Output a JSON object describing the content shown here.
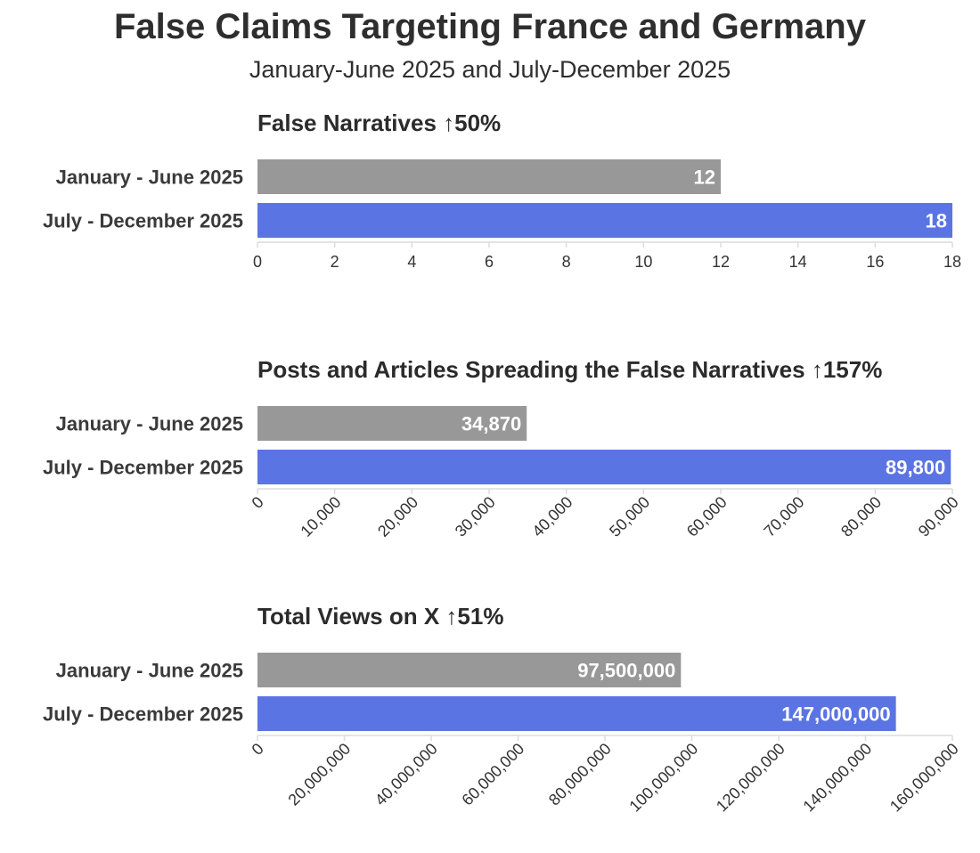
{
  "title": "False Claims Targeting France and Germany",
  "subtitle": "January-June 2025 and July-December 2025",
  "colors": {
    "period1": "#989898",
    "period2": "#5b74e3",
    "axis": "#dcdcdc"
  },
  "chart_data": [
    {
      "type": "bar",
      "orientation": "horizontal",
      "title": "False Narratives ↑50%",
      "categories": [
        "January - June 2025",
        "July - December 2025"
      ],
      "values": [
        12,
        18
      ],
      "value_labels": [
        "12",
        "18"
      ],
      "xlim": [
        0,
        18
      ],
      "ticks": [
        0,
        2,
        4,
        6,
        8,
        10,
        12,
        14,
        16,
        18
      ],
      "tick_labels": [
        "0",
        "2",
        "4",
        "6",
        "8",
        "10",
        "12",
        "14",
        "16",
        "18"
      ],
      "tick_rotation": 0
    },
    {
      "type": "bar",
      "orientation": "horizontal",
      "title": "Posts and Articles Spreading the False Narratives ↑157%",
      "categories": [
        "January - June 2025",
        "July - December 2025"
      ],
      "values": [
        34870,
        89800
      ],
      "value_labels": [
        "34,870",
        "89,800"
      ],
      "xlim": [
        0,
        90000
      ],
      "ticks": [
        0,
        10000,
        20000,
        30000,
        40000,
        50000,
        60000,
        70000,
        80000,
        90000
      ],
      "tick_labels": [
        "0",
        "10,000",
        "20,000",
        "30,000",
        "40,000",
        "50,000",
        "60,000",
        "70,000",
        "80,000",
        "90,000"
      ],
      "tick_rotation": -45
    },
    {
      "type": "bar",
      "orientation": "horizontal",
      "title": "Total Views on X ↑51%",
      "categories": [
        "January - June 2025",
        "July - December 2025"
      ],
      "values": [
        97500000,
        147000000
      ],
      "value_labels": [
        "97,500,000",
        "147,000,000"
      ],
      "xlim": [
        0,
        160000000
      ],
      "ticks": [
        0,
        20000000,
        40000000,
        60000000,
        80000000,
        100000000,
        120000000,
        140000000,
        160000000
      ],
      "tick_labels": [
        "0",
        "20,000,000",
        "40,000,000",
        "60,000,000",
        "80,000,000",
        "100,000,000",
        "120,000,000",
        "140,000,000",
        "160,000,000"
      ],
      "tick_rotation": -45
    }
  ]
}
